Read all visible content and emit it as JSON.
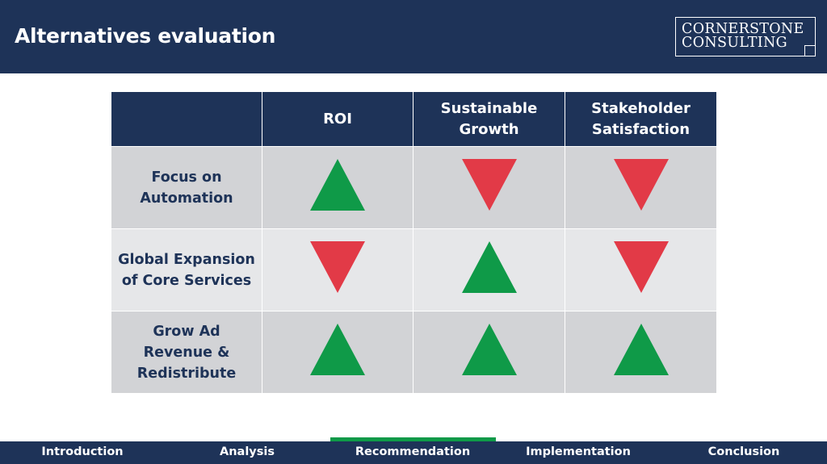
{
  "header": {
    "title": "Alternatives evaluation",
    "logo_line1": "CORNERSTONE",
    "logo_line2": "CONSULTING"
  },
  "table": {
    "columns": [
      "",
      "ROI",
      "Sustainable Growth",
      "Stakeholder Satisfaction"
    ],
    "rows": [
      {
        "label": "Focus on Automation",
        "values": [
          "up",
          "down",
          "down"
        ]
      },
      {
        "label": "Global Expansion of Core Services",
        "values": [
          "down",
          "up",
          "down"
        ]
      },
      {
        "label": "Grow Ad Revenue & Redistribute",
        "values": [
          "up",
          "up",
          "up"
        ]
      }
    ]
  },
  "nav": {
    "items": [
      "Introduction",
      "Analysis",
      "Recommendation",
      "Implementation",
      "Conclusion"
    ],
    "active": "Recommendation"
  },
  "colors": {
    "navy": "#1e3358",
    "up": "#0f9a48",
    "down": "#e23a47",
    "row_dark": "#d2d3d6",
    "row_light": "#e6e7e9"
  }
}
